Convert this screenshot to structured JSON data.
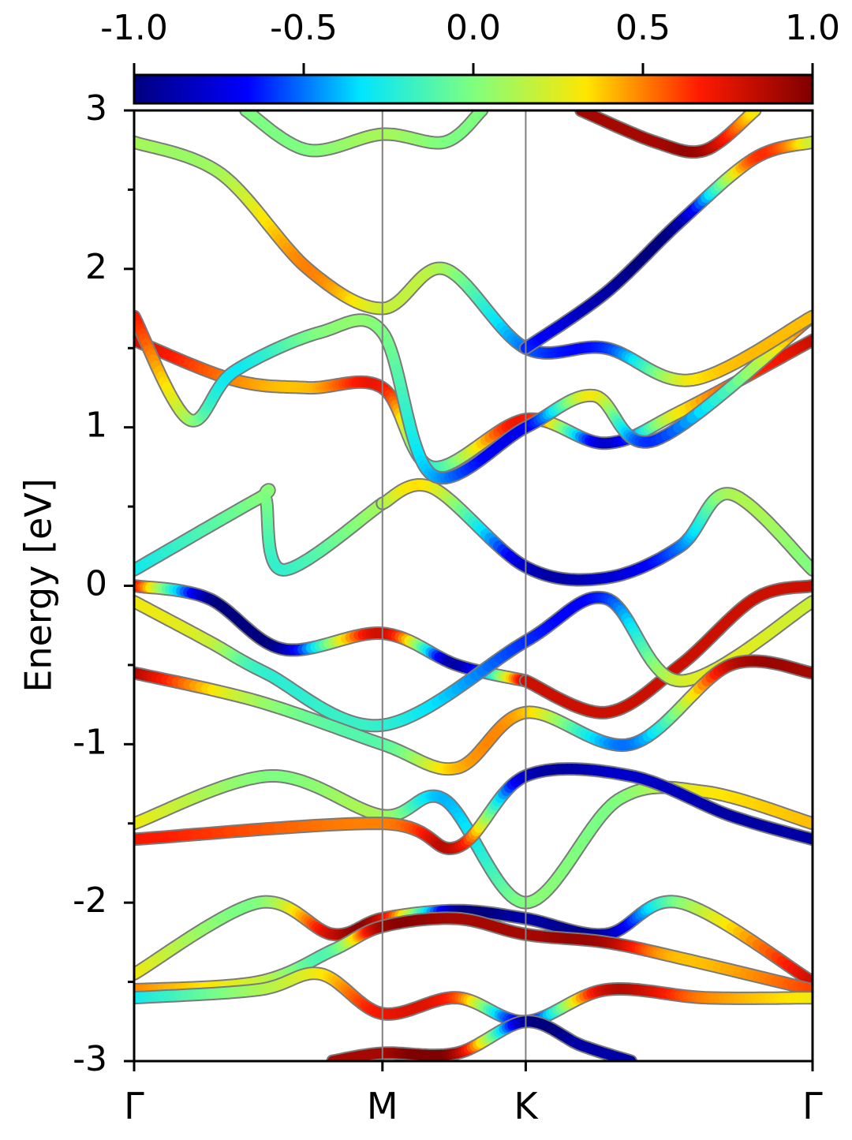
{
  "chart_data": {
    "type": "line",
    "title": "",
    "ylabel": "Energy [eV]",
    "xlabel": "",
    "ylim": [
      -3,
      3
    ],
    "y_ticks": [
      "3",
      "2",
      "1",
      "0",
      "-1",
      "-2",
      "-3"
    ],
    "y_minor_ticks": [
      2.5,
      1.5,
      0.5,
      -0.5,
      -1.5,
      -2.5
    ],
    "k_points": [
      {
        "label": "Γ",
        "x": 0.0
      },
      {
        "label": "M",
        "x": 1.0
      },
      {
        "label": "K",
        "x": 1.577
      },
      {
        "label": "Γ",
        "x": 2.732
      }
    ],
    "colorbar": {
      "colormap": "jet",
      "range": [
        -1.0,
        1.0
      ],
      "tick_labels": [
        "-1.0",
        "-0.5",
        "0.0",
        "0.5",
        "1.0"
      ],
      "tick_values": [
        -1.0,
        -0.5,
        0.0,
        0.5,
        1.0
      ],
      "colors": [
        "#00007f",
        "#0000ff",
        "#00e5ff",
        "#7fff7f",
        "#ffe600",
        "#ff1a00",
        "#7f0000"
      ]
    },
    "series": [
      {
        "x": [
          0,
          0.5,
          0.53,
          0.6,
          1.0
        ],
        "y": [
          0.1,
          0.55,
          0.55,
          0.1,
          0.52
        ],
        "c": [
          -0.3,
          0.0,
          0.0,
          -0.2,
          0.1
        ]
      },
      {
        "x": [
          1.0,
          1.2,
          1.577,
          1.9,
          2.2,
          2.4,
          2.732
        ],
        "y": [
          0.52,
          0.62,
          0.12,
          0.05,
          0.25,
          0.58,
          0.1
        ],
        "c": [
          0.1,
          0.3,
          -0.8,
          -0.8,
          -0.5,
          0.1,
          0.0
        ]
      },
      {
        "x": [
          0,
          0.3,
          0.6,
          1.0,
          1.3,
          1.577
        ],
        "y": [
          0.0,
          -0.08,
          -0.4,
          -0.3,
          -0.5,
          -0.6
        ],
        "c": [
          0.8,
          -0.9,
          -0.9,
          0.8,
          -0.9,
          0.8
        ]
      },
      {
        "x": [
          1.577,
          1.9,
          2.2,
          2.5,
          2.732
        ],
        "y": [
          -0.6,
          -0.8,
          -0.5,
          -0.08,
          0.0
        ],
        "c": [
          0.8,
          0.8,
          0.8,
          0.8,
          0.8
        ]
      },
      {
        "x": [
          0,
          0.3,
          0.53,
          1.0,
          1.577,
          1.9,
          2.2,
          2.732
        ],
        "y": [
          -0.1,
          -0.35,
          -0.55,
          -0.88,
          -0.35,
          -0.08,
          -0.6,
          -0.1
        ],
        "c": [
          0.3,
          0.2,
          -0.2,
          -0.2,
          -0.6,
          -0.6,
          0.2,
          0.2
        ]
      },
      {
        "x": [
          0,
          0.5,
          1.0,
          1.3,
          1.577,
          2.0,
          2.4,
          2.732
        ],
        "y": [
          -0.55,
          -0.73,
          -1.0,
          -1.15,
          -0.8,
          -1.0,
          -0.5,
          -0.55
        ],
        "c": [
          0.9,
          0.1,
          -0.1,
          0.4,
          0.4,
          -0.5,
          0.8,
          0.9
        ]
      },
      {
        "x": [
          0,
          0.55,
          1.0,
          1.25,
          1.577,
          1.95,
          2.3,
          2.732
        ],
        "y": [
          -1.5,
          -1.2,
          -1.45,
          -1.35,
          -2.0,
          -1.35,
          -1.3,
          -1.5
        ],
        "c": [
          0.3,
          0.0,
          0.1,
          -0.4,
          0.0,
          0.0,
          0.3,
          0.4
        ]
      },
      {
        "x": [
          0,
          1.0,
          1.3,
          1.577,
          2.0,
          2.4,
          2.732
        ],
        "y": [
          -1.6,
          -1.5,
          -1.65,
          -1.2,
          -1.2,
          -1.45,
          -1.6
        ],
        "c": [
          0.7,
          0.5,
          0.8,
          -0.8,
          -0.8,
          -0.9,
          -0.9
        ]
      },
      {
        "x": [
          0,
          0.5,
          0.8,
          1.0,
          1.3,
          1.577,
          1.9,
          2.2,
          2.732
        ],
        "y": [
          -2.45,
          -2.0,
          -2.2,
          -2.1,
          -2.05,
          -2.1,
          -2.2,
          -2.0,
          -2.5
        ],
        "c": [
          0.3,
          0.0,
          0.8,
          0.8,
          -0.9,
          -0.9,
          -0.9,
          0.0,
          0.8
        ]
      },
      {
        "x": [
          0,
          0.5,
          0.8,
          1.0,
          1.3,
          1.577,
          1.9,
          2.2,
          2.732
        ],
        "y": [
          -2.55,
          -2.5,
          -2.3,
          -2.15,
          -2.1,
          -2.2,
          -2.25,
          -2.35,
          -2.55
        ],
        "c": [
          0.5,
          0.2,
          -0.1,
          0.9,
          0.9,
          0.9,
          0.9,
          0.4,
          0.6
        ]
      },
      {
        "x": [
          0,
          0.5,
          0.75,
          1.0,
          1.3,
          1.577,
          1.9,
          2.3,
          2.732
        ],
        "y": [
          -2.6,
          -2.55,
          -2.45,
          -2.7,
          -2.6,
          -2.75,
          -2.55,
          -2.6,
          -2.6
        ],
        "c": [
          -0.3,
          0.1,
          0.3,
          0.7,
          0.6,
          -0.7,
          0.8,
          0.5,
          0.3
        ]
      },
      {
        "x": [
          0,
          0.4,
          0.7,
          1.0,
          1.2,
          1.577,
          1.9,
          2.2,
          2.732
        ],
        "y": [
          1.55,
          1.3,
          1.25,
          1.25,
          0.75,
          1.05,
          0.9,
          1.1,
          1.55
        ],
        "c": [
          0.8,
          0.5,
          0.4,
          0.7,
          -0.2,
          0.7,
          -0.8,
          0.3,
          0.8
        ]
      },
      {
        "x": [
          0,
          0.22,
          0.4,
          0.75,
          1.0,
          1.2,
          1.577,
          1.85,
          2.1,
          2.732
        ],
        "y": [
          1.7,
          1.05,
          1.35,
          1.6,
          1.6,
          0.7,
          1.0,
          1.2,
          0.92,
          1.7
        ],
        "c": [
          0.7,
          0.1,
          -0.3,
          0.0,
          0.0,
          -0.4,
          -0.7,
          0.3,
          -0.6,
          0.6
        ]
      },
      {
        "x": [
          0,
          0.35,
          0.7,
          1.0,
          1.25,
          1.577,
          1.9,
          2.25,
          2.732
        ],
        "y": [
          2.8,
          2.6,
          2.0,
          1.75,
          2.0,
          1.5,
          1.5,
          1.3,
          1.7
        ],
        "c": [
          0.1,
          0.1,
          0.5,
          0.2,
          0.1,
          -0.5,
          -0.6,
          0.3,
          0.4
        ]
      },
      {
        "x": [
          1.577,
          1.9,
          2.2,
          2.5,
          2.732
        ],
        "y": [
          1.5,
          1.85,
          2.3,
          2.7,
          2.8
        ],
        "c": [
          -0.6,
          -0.9,
          -0.9,
          0.6,
          0.2
        ]
      },
      {
        "x": [
          0.45,
          0.7,
          1.0,
          1.25,
          1.4
        ],
        "y": [
          3.0,
          2.75,
          2.85,
          2.8,
          3.0
        ],
        "c": [
          0.0,
          0.0,
          0.1,
          0.0,
          0.0
        ]
      },
      {
        "x": [
          1.8,
          2.1,
          2.3,
          2.5
        ],
        "y": [
          3.0,
          2.8,
          2.75,
          3.0
        ],
        "c": [
          0.9,
          0.9,
          0.9,
          0.3
        ]
      },
      {
        "x": [
          0.8,
          1.0,
          1.3,
          1.577,
          1.8,
          2.0
        ],
        "y": [
          -3.0,
          -2.95,
          -2.95,
          -2.75,
          -2.9,
          -3.0
        ],
        "c": [
          0.9,
          0.9,
          0.9,
          -0.9,
          -0.9,
          -0.9
        ]
      }
    ]
  }
}
